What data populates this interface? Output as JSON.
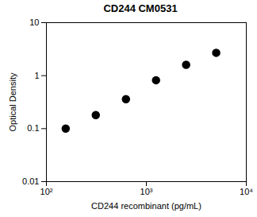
{
  "chart_data": {
    "type": "scatter",
    "title": "CD244 CM0531",
    "x_label": "CD244 recombinant (pg/mL)",
    "y_label": "Optical Density",
    "x": [
      156,
      312,
      625,
      1250,
      2500,
      5000
    ],
    "values": [
      0.1,
      0.18,
      0.36,
      0.82,
      1.6,
      2.7
    ],
    "color": "#000000",
    "marker": "circle",
    "log": true,
    "grid": false,
    "xlim": [
      100,
      10000
    ],
    "xticks": [
      {
        "value": 100,
        "label": "10²"
      },
      {
        "value": 1000,
        "label": "10³"
      },
      {
        "value": 10000,
        "label": "10⁴"
      }
    ],
    "ylim": [
      0.01,
      10
    ],
    "yticks": [
      0.01,
      0.1,
      1,
      10
    ]
  }
}
